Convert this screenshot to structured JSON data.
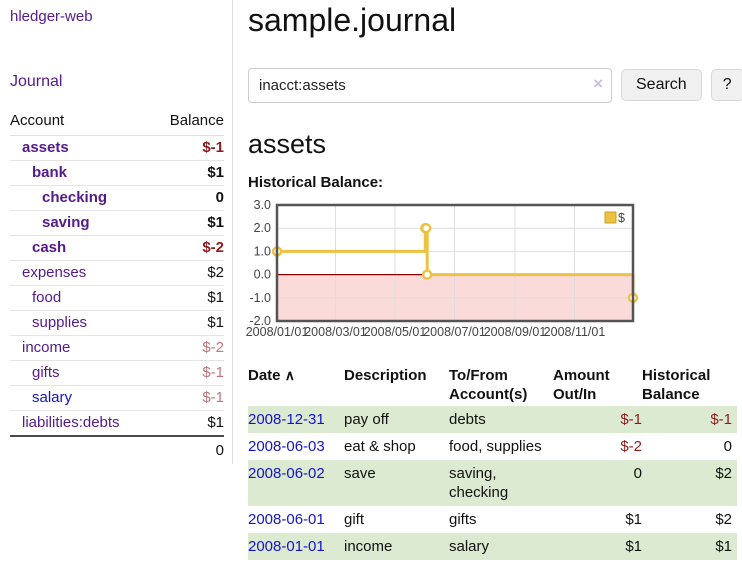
{
  "colors": {
    "link_purple": "#551A8B",
    "link_blue": "#1414CC",
    "neg_dark": "#8E1B1B",
    "neg_light": "#BF7577",
    "stripe_green": "#DCEAD2",
    "divider": "#DDDDDD",
    "btn_bg": "#F0F0F0"
  },
  "sidebar": {
    "title": "hledger-web",
    "journal_link": "Journal",
    "accounts_table": {
      "headers": [
        "Account",
        "Balance"
      ],
      "rows": [
        {
          "name": "assets",
          "indent": 1,
          "bold": true,
          "balance": "$-1"
        },
        {
          "name": "bank",
          "indent": 2,
          "bold": true,
          "balance": "$1"
        },
        {
          "name": "checking",
          "indent": 3,
          "bold": true,
          "balance": "0"
        },
        {
          "name": "saving",
          "indent": 3,
          "bold": true,
          "balance": "$1"
        },
        {
          "name": "cash",
          "indent": 2,
          "bold": true,
          "balance": "$-2"
        },
        {
          "name": "expenses",
          "indent": 1,
          "bold": false,
          "balance": "$2"
        },
        {
          "name": "food",
          "indent": 2,
          "bold": false,
          "balance": "$1"
        },
        {
          "name": "supplies",
          "indent": 2,
          "bold": false,
          "balance": "$1"
        },
        {
          "name": "income",
          "indent": 1,
          "bold": false,
          "balance": "$-2"
        },
        {
          "name": "gifts",
          "indent": 2,
          "bold": false,
          "balance": "$-1"
        },
        {
          "name": "salary",
          "indent": 2,
          "bold": false,
          "balance": "$-1",
          "link": "blue"
        },
        {
          "name": "liabilities:debts",
          "indent": 1,
          "bold": false,
          "balance": "$1"
        }
      ],
      "total": "0"
    }
  },
  "main": {
    "title": "sample.journal",
    "search": {
      "value": "inacct:assets",
      "clear_icon": "×",
      "button_label": "Search",
      "help_label": "?"
    },
    "account_heading": "assets",
    "chart_label": "Historical Balance:",
    "register": {
      "headers": [
        "Date",
        "Description",
        "To/From Account(s)",
        "Amount Out/In",
        "Historical Balance"
      ],
      "sort_icon": "∧",
      "rows": [
        {
          "date": "2008-12-31",
          "description": "pay off",
          "accounts": "debts",
          "amount": "$-1",
          "balance": "$-1"
        },
        {
          "date": "2008-06-03",
          "description": "eat & shop",
          "accounts": "food, supplies",
          "amount": "$-2",
          "balance": "0"
        },
        {
          "date": "2008-06-02",
          "description": "save",
          "accounts": "saving, checking",
          "amount": "0",
          "balance": "$2"
        },
        {
          "date": "2008-06-01",
          "description": "gift",
          "accounts": "gifts",
          "amount": "$1",
          "balance": "$2"
        },
        {
          "date": "2008-01-01",
          "description": "income",
          "accounts": "salary",
          "amount": "$1",
          "balance": "$1"
        }
      ]
    }
  },
  "chart_data": {
    "type": "line",
    "step": true,
    "title": "Historical Balance",
    "legend": {
      "label": "$",
      "position": "top-right"
    },
    "series": [
      {
        "name": "$",
        "color": "#EDC240",
        "marker_border": "#C8A02A",
        "points": [
          [
            "2008-01-01",
            1
          ],
          [
            "2008-06-01",
            2
          ],
          [
            "2008-06-02",
            2
          ],
          [
            "2008-06-03",
            0
          ],
          [
            "2008-12-31",
            -1
          ]
        ]
      }
    ],
    "xlim": [
      "2008-01-01",
      "2008-12-31"
    ],
    "ylim": [
      -2,
      3
    ],
    "y_ticks": [
      3.0,
      2.0,
      1.0,
      0.0,
      -1.0,
      -2.0
    ],
    "x_ticks": [
      "2008-01-01",
      "2008-03-01",
      "2008-05-01",
      "2008-07-01",
      "2008-09-01",
      "2008-11-01"
    ],
    "x_tick_labels": [
      "2008/01/01",
      "2008/03/01",
      "2008/05/01",
      "2008/07/01",
      "2008/09/01",
      "2008/11/01"
    ],
    "grid": true,
    "grid_color": "#DEDEDE",
    "border_color": "#545454",
    "tick_text_color": "#444444",
    "negative_region_fill": "#FBDADA",
    "zero_line_color": "#8B0000"
  }
}
